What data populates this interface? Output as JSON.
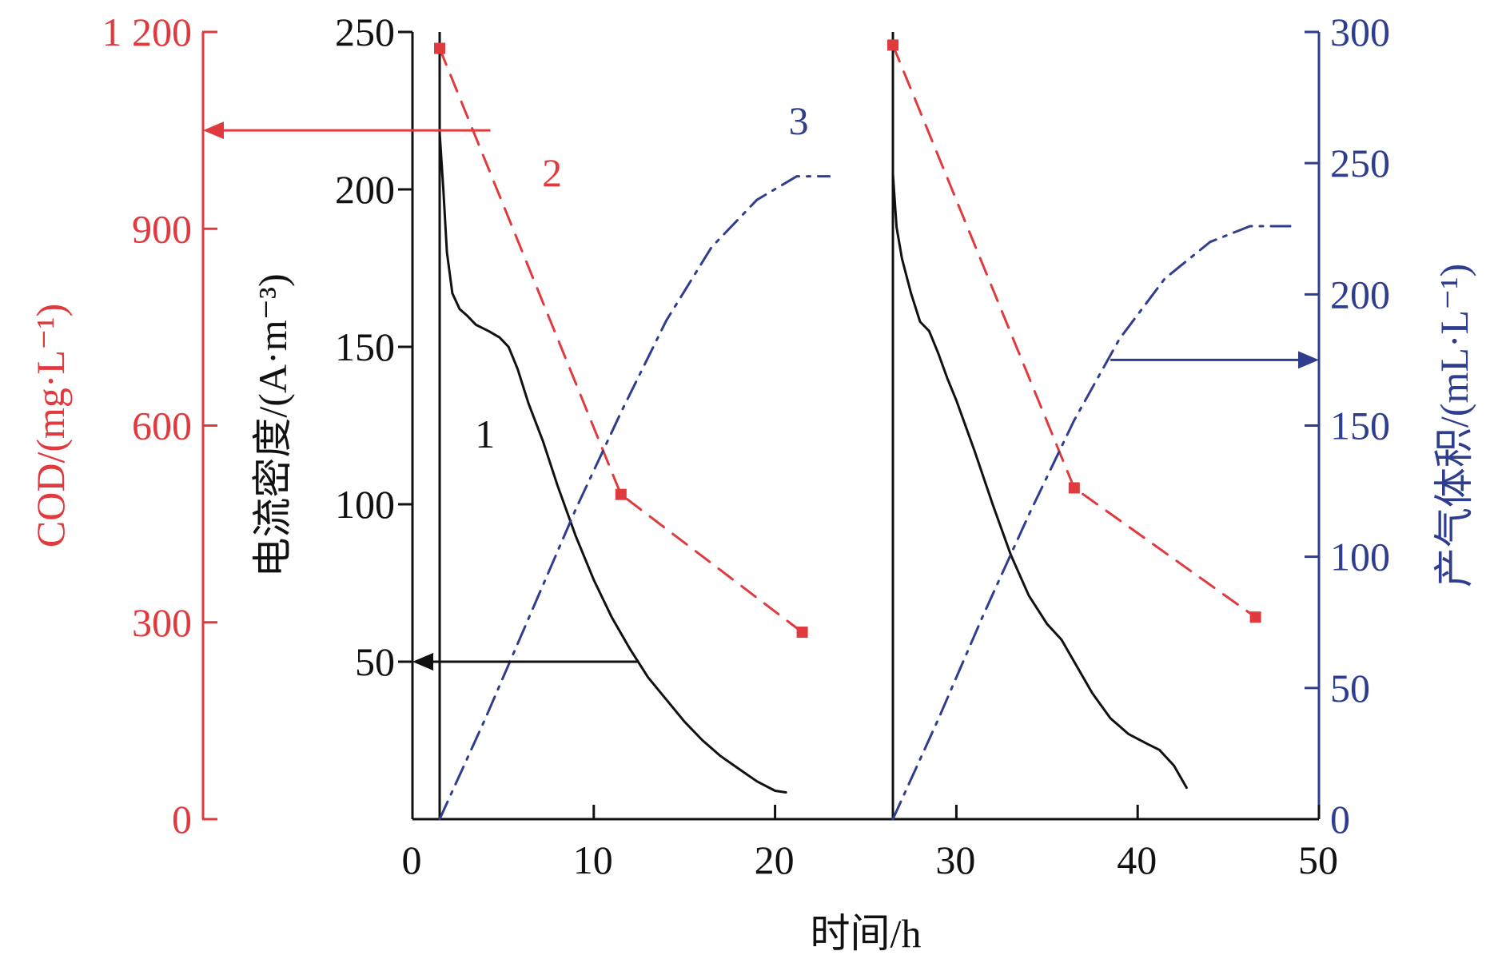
{
  "colors": {
    "black": "#111111",
    "red": "#e03a3e",
    "blue": "#2f3d8f"
  },
  "chart_data": {
    "type": "line",
    "xlabel": "时间/h",
    "x_ticks": [
      "0",
      "10",
      "20",
      "30",
      "40",
      "50"
    ],
    "xlim": [
      0,
      50
    ],
    "axes": {
      "cod": {
        "label": "COD/(mg·L⁻¹)",
        "ylim": [
          0,
          1200
        ],
        "ticks": [
          0,
          300,
          600,
          900,
          1200
        ],
        "tick_labels": [
          "0",
          "300",
          "600",
          "900",
          "1 200"
        ]
      },
      "current": {
        "label": "电流密度/(A·m⁻³)",
        "ylim": [
          0,
          250
        ],
        "ticks": [
          50,
          100,
          150,
          200,
          250
        ],
        "tick_labels": [
          "50",
          "100",
          "150",
          "200",
          "250"
        ]
      },
      "gas": {
        "label": "产气体积/(mL·L⁻¹)",
        "ylim": [
          0,
          300
        ],
        "ticks": [
          0,
          50,
          100,
          150,
          200,
          250,
          300
        ],
        "tick_labels": [
          "0",
          "50",
          "100",
          "150",
          "200",
          "250",
          "300"
        ]
      }
    },
    "series": [
      {
        "name": "1",
        "axis": "current",
        "color": "#111111",
        "style": "solid",
        "segments": [
          [
            [
              1.5,
              218
            ],
            [
              1.7,
              200
            ],
            [
              1.9,
              180
            ],
            [
              2.2,
              167
            ],
            [
              2.6,
              162
            ],
            [
              3.0,
              160
            ],
            [
              3.5,
              157
            ],
            [
              4.2,
              155
            ],
            [
              4.8,
              153
            ],
            [
              5.3,
              150
            ],
            [
              5.8,
              143
            ],
            [
              6.4,
              132
            ],
            [
              7.2,
              120
            ],
            [
              8.0,
              106
            ],
            [
              9.0,
              90
            ],
            [
              10.0,
              76
            ],
            [
              11.0,
              64
            ],
            [
              12.0,
              54
            ],
            [
              13.0,
              45
            ],
            [
              14.0,
              38
            ],
            [
              15.0,
              31
            ],
            [
              16.0,
              25
            ],
            [
              17.0,
              20
            ],
            [
              18.0,
              16
            ],
            [
              19.0,
              12
            ],
            [
              20.0,
              9
            ],
            [
              20.6,
              8.5
            ]
          ],
          [
            [
              26.5,
              205
            ],
            [
              26.7,
              188
            ],
            [
              27.0,
              178
            ],
            [
              27.5,
              167
            ],
            [
              28.0,
              158
            ],
            [
              28.5,
              155
            ],
            [
              29.0,
              148
            ],
            [
              29.5,
              140
            ],
            [
              30.0,
              133
            ],
            [
              31.0,
              117
            ],
            [
              32.0,
              100
            ],
            [
              33.0,
              84
            ],
            [
              34.0,
              71
            ],
            [
              35.0,
              62
            ],
            [
              35.8,
              57
            ],
            [
              36.5,
              50
            ],
            [
              37.5,
              40
            ],
            [
              38.5,
              32
            ],
            [
              39.5,
              27
            ],
            [
              40.5,
              24
            ],
            [
              41.2,
              22
            ],
            [
              42.0,
              17
            ],
            [
              42.7,
              10
            ]
          ]
        ],
        "label_at": [
          4.0,
          118
        ]
      },
      {
        "name": "2",
        "axis": "cod",
        "color": "#e03a3e",
        "style": "dashed",
        "segments": [
          [
            [
              1.5,
              1175
            ],
            [
              11.5,
              495
            ],
            [
              21.5,
              285
            ]
          ],
          [
            [
              26.5,
              1180
            ],
            [
              36.5,
              505
            ],
            [
              46.5,
              308
            ]
          ]
        ],
        "label_at": [
          7.7,
          965
        ]
      },
      {
        "name": "3",
        "axis": "gas",
        "color": "#2f3d8f",
        "style": "dashdot",
        "segments": [
          [
            [
              1.5,
              0
            ],
            [
              4,
              38
            ],
            [
              6.5,
              78
            ],
            [
              9,
              118
            ],
            [
              11.5,
              155
            ],
            [
              14,
              190
            ],
            [
              16.5,
              218
            ],
            [
              19,
              236
            ],
            [
              21.2,
              245
            ],
            [
              23,
              245
            ]
          ],
          [
            [
              26.5,
              0
            ],
            [
              29,
              38
            ],
            [
              31.5,
              78
            ],
            [
              34,
              116
            ],
            [
              36.5,
              152
            ],
            [
              39,
              183
            ],
            [
              41.5,
              206
            ],
            [
              44,
              220
            ],
            [
              46.2,
              226
            ],
            [
              48.5,
              226
            ]
          ]
        ],
        "label_at": [
          21.3,
          261
        ]
      }
    ],
    "vertical_lines_x": [
      1.5,
      26.5
    ],
    "annotation_arrows": [
      {
        "series": "2",
        "target_axis": "cod",
        "y_value": 1050
      },
      {
        "series": "1",
        "target_axis": "current",
        "y_value": 50
      },
      {
        "series": "3",
        "target_axis": "gas",
        "y_value": 175
      }
    ]
  }
}
